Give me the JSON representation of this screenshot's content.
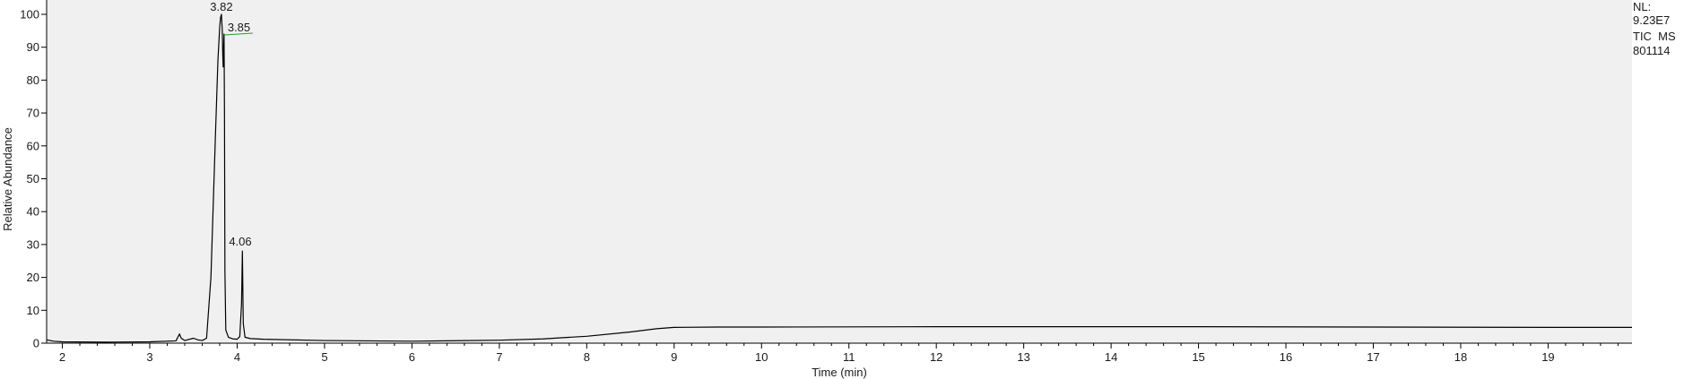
{
  "chart_data": {
    "type": "line",
    "title": "",
    "xlabel": "Time (min)",
    "ylabel": "Relative Abundance",
    "xlim": [
      1.82,
      19.96
    ],
    "ylim": [
      0,
      100
    ],
    "xticks": [
      2,
      3,
      4,
      5,
      6,
      7,
      8,
      9,
      10,
      11,
      12,
      13,
      14,
      15,
      16,
      17,
      18,
      19
    ],
    "yticks": [
      0,
      10,
      20,
      30,
      40,
      50,
      60,
      70,
      80,
      90,
      100
    ],
    "grid": false,
    "series": [
      {
        "color": "#000000",
        "x": [
          1.82,
          1.9,
          2.0,
          2.5,
          3.0,
          3.3,
          3.34,
          3.36,
          3.4,
          3.5,
          3.55,
          3.6,
          3.65,
          3.7,
          3.75,
          3.78,
          3.8,
          3.81,
          3.82,
          3.83,
          3.835,
          3.84,
          3.845,
          3.85,
          3.855,
          3.86,
          3.87,
          3.9,
          3.95,
          4.0,
          4.03,
          4.05,
          4.06,
          4.07,
          4.09,
          4.15,
          4.3,
          5.0,
          6.0,
          7.0,
          7.5,
          8.0,
          8.5,
          8.8,
          9.0,
          9.5,
          10.0,
          12.0,
          13.0,
          15.0,
          17.0,
          19.0,
          19.96
        ],
        "y": [
          1.0,
          0.6,
          0.4,
          0.3,
          0.4,
          0.7,
          2.8,
          1.5,
          0.8,
          1.5,
          1.0,
          0.8,
          1.5,
          20.0,
          62.0,
          86.0,
          96.0,
          99.0,
          100.0,
          95.0,
          88.0,
          84.0,
          89.0,
          94.0,
          70.0,
          22.0,
          4.0,
          1.8,
          1.3,
          1.2,
          2.0,
          12.0,
          28.0,
          6.0,
          1.8,
          1.4,
          1.2,
          0.8,
          0.6,
          0.9,
          1.3,
          2.1,
          3.4,
          4.4,
          4.8,
          4.9,
          4.9,
          5.0,
          5.0,
          5.0,
          4.9,
          4.8,
          4.8
        ]
      }
    ],
    "peak_labels": [
      {
        "text": "3.82",
        "x": 3.82,
        "y": 100
      },
      {
        "text": "3.85",
        "x": 3.85,
        "y": 94
      },
      {
        "text": "4.06",
        "x": 4.06,
        "y": 28
      }
    ],
    "annotation": {
      "lines": [
        "NL:",
        "9.23E7",
        "TIC  MS",
        "801114"
      ]
    }
  }
}
